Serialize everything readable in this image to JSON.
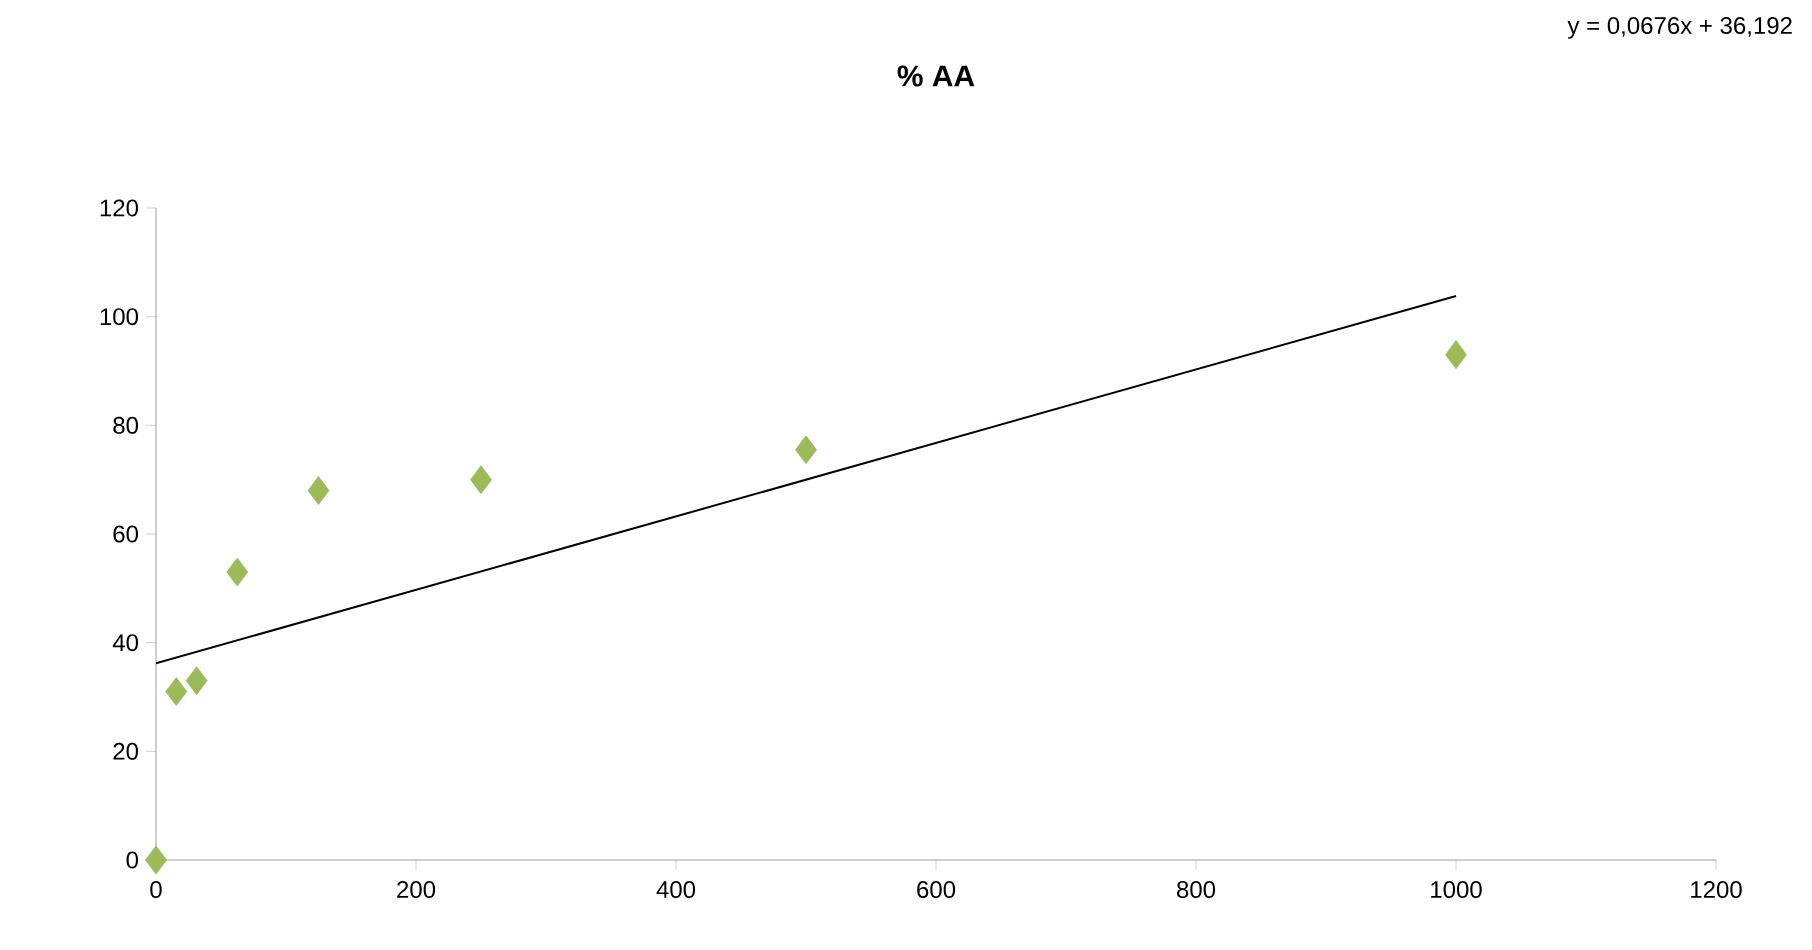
{
  "chart_data": {
    "type": "scatter",
    "title": "% AA",
    "grid": false,
    "xlim": [
      0,
      1200
    ],
    "xticks": [
      0,
      200,
      400,
      600,
      800,
      1000,
      1200
    ],
    "ylim": [
      0,
      120
    ],
    "yticks": [
      0,
      20,
      40,
      60,
      80,
      100,
      120
    ],
    "annotations": [
      "y = 0,0676x + 36,192"
    ],
    "series": [
      {
        "marker": "diamond",
        "color": "#9bbb59",
        "x": [
          0,
          15.6,
          31.25,
          62.5,
          125,
          250,
          500,
          1000
        ],
        "values": [
          0,
          31,
          33,
          53,
          68,
          70,
          75.5,
          93
        ]
      },
      {
        "type": "line",
        "marker": "none",
        "color": "#000000",
        "x": [
          0,
          1000
        ],
        "values": [
          36.2,
          103.8
        ]
      }
    ]
  }
}
